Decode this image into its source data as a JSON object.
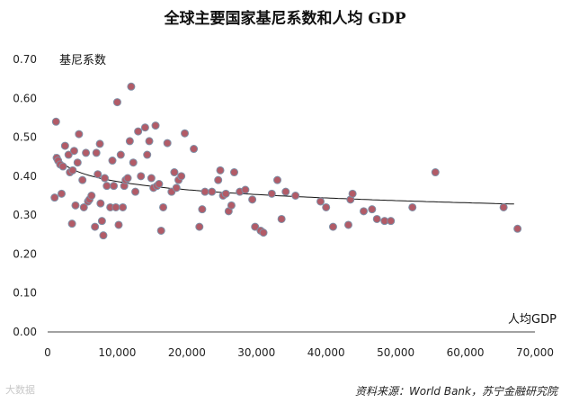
{
  "chart_data": {
    "type": "scatter",
    "title": "全球主要国家基尼系数和人均 GDP",
    "ylabel": "基尼系数",
    "xlabel": "人均GDP",
    "xlim": [
      0,
      70000
    ],
    "ylim": [
      0,
      0.7
    ],
    "x_ticks": [
      "0",
      "10,000",
      "20,000",
      "30,000",
      "40,000",
      "50,000",
      "60,000",
      "70,000"
    ],
    "y_ticks": [
      "0.00",
      "0.10",
      "0.20",
      "0.30",
      "0.40",
      "0.50",
      "0.60",
      "0.70"
    ],
    "grid": false,
    "source": "资料来源：World Bank，苏宁金融研究院",
    "points": [
      [
        1000,
        0.345
      ],
      [
        1200,
        0.54
      ],
      [
        1300,
        0.447
      ],
      [
        1500,
        0.44
      ],
      [
        1800,
        0.43
      ],
      [
        2000,
        0.355
      ],
      [
        2200,
        0.425
      ],
      [
        2500,
        0.478
      ],
      [
        3000,
        0.455
      ],
      [
        3200,
        0.41
      ],
      [
        3500,
        0.278
      ],
      [
        3600,
        0.415
      ],
      [
        3800,
        0.465
      ],
      [
        4000,
        0.325
      ],
      [
        4300,
        0.435
      ],
      [
        4500,
        0.508
      ],
      [
        5000,
        0.39
      ],
      [
        5200,
        0.32
      ],
      [
        5500,
        0.46
      ],
      [
        5800,
        0.335
      ],
      [
        6000,
        0.34
      ],
      [
        6300,
        0.35
      ],
      [
        6800,
        0.27
      ],
      [
        7000,
        0.46
      ],
      [
        7200,
        0.405
      ],
      [
        7500,
        0.483
      ],
      [
        7600,
        0.33
      ],
      [
        7800,
        0.285
      ],
      [
        8000,
        0.248
      ],
      [
        8200,
        0.395
      ],
      [
        8500,
        0.375
      ],
      [
        9000,
        0.32
      ],
      [
        9300,
        0.44
      ],
      [
        9500,
        0.375
      ],
      [
        9800,
        0.32
      ],
      [
        10000,
        0.59
      ],
      [
        10200,
        0.275
      ],
      [
        10500,
        0.455
      ],
      [
        10800,
        0.32
      ],
      [
        11000,
        0.375
      ],
      [
        11200,
        0.39
      ],
      [
        11500,
        0.395
      ],
      [
        11800,
        0.49
      ],
      [
        12000,
        0.63
      ],
      [
        12300,
        0.435
      ],
      [
        12600,
        0.36
      ],
      [
        13000,
        0.515
      ],
      [
        13400,
        0.4
      ],
      [
        14000,
        0.525
      ],
      [
        14300,
        0.455
      ],
      [
        14600,
        0.49
      ],
      [
        14900,
        0.395
      ],
      [
        15200,
        0.37
      ],
      [
        15500,
        0.53
      ],
      [
        15700,
        0.375
      ],
      [
        16000,
        0.38
      ],
      [
        16300,
        0.26
      ],
      [
        16600,
        0.32
      ],
      [
        17200,
        0.485
      ],
      [
        17800,
        0.36
      ],
      [
        18200,
        0.41
      ],
      [
        18500,
        0.37
      ],
      [
        18800,
        0.39
      ],
      [
        19200,
        0.4
      ],
      [
        19700,
        0.51
      ],
      [
        21000,
        0.47
      ],
      [
        21800,
        0.27
      ],
      [
        22200,
        0.315
      ],
      [
        22600,
        0.36
      ],
      [
        23600,
        0.36
      ],
      [
        24500,
        0.39
      ],
      [
        24800,
        0.415
      ],
      [
        25200,
        0.35
      ],
      [
        25600,
        0.355
      ],
      [
        26000,
        0.31
      ],
      [
        26400,
        0.325
      ],
      [
        26800,
        0.41
      ],
      [
        27600,
        0.36
      ],
      [
        28400,
        0.365
      ],
      [
        29400,
        0.34
      ],
      [
        29800,
        0.27
      ],
      [
        30600,
        0.26
      ],
      [
        31000,
        0.255
      ],
      [
        32200,
        0.355
      ],
      [
        33000,
        0.39
      ],
      [
        33600,
        0.29
      ],
      [
        34200,
        0.36
      ],
      [
        35600,
        0.35
      ],
      [
        39200,
        0.335
      ],
      [
        40000,
        0.32
      ],
      [
        41000,
        0.27
      ],
      [
        43200,
        0.275
      ],
      [
        43500,
        0.34
      ],
      [
        43800,
        0.355
      ],
      [
        45400,
        0.31
      ],
      [
        46600,
        0.315
      ],
      [
        47300,
        0.29
      ],
      [
        48400,
        0.285
      ],
      [
        49300,
        0.285
      ],
      [
        52400,
        0.32
      ],
      [
        55700,
        0.41
      ],
      [
        65500,
        0.32
      ],
      [
        67500,
        0.265
      ]
    ],
    "trendline": {
      "type": "logarithmic",
      "x_range": [
        1000,
        67000
      ]
    }
  },
  "watermark": "大数据"
}
